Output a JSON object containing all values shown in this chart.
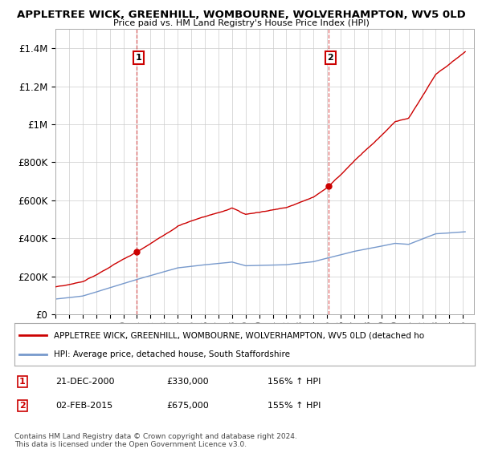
{
  "title": "APPLETREE WICK, GREENHILL, WOMBOURNE, WOLVERHAMPTON, WV5 0LD",
  "subtitle": "Price paid vs. HM Land Registry's House Price Index (HPI)",
  "background_color": "#ffffff",
  "plot_bg_color": "#ffffff",
  "grid_color": "#cccccc",
  "red_line_color": "#cc0000",
  "blue_line_color": "#7799cc",
  "dashed_line_color": "#cc0000",
  "ylim": [
    0,
    1500000
  ],
  "yticks": [
    0,
    200000,
    400000,
    600000,
    800000,
    1000000,
    1200000,
    1400000
  ],
  "ytick_labels": [
    "£0",
    "£200K",
    "£400K",
    "£600K",
    "£800K",
    "£1M",
    "£1.2M",
    "£1.4M"
  ],
  "xlim_start": 1995.0,
  "xlim_end": 2025.8,
  "transaction1": {
    "date_x": 2000.97,
    "price": 330000,
    "label": "1"
  },
  "transaction2": {
    "date_x": 2015.09,
    "price": 675000,
    "label": "2"
  },
  "annotation1": {
    "date": "21-DEC-2000",
    "price": "£330,000",
    "pct": "156% ↑ HPI"
  },
  "annotation2": {
    "date": "02-FEB-2015",
    "price": "£675,000",
    "pct": "155% ↑ HPI"
  },
  "legend_line1": "APPLETREE WICK, GREENHILL, WOMBOURNE, WOLVERHAMPTON, WV5 0LD (detached ho",
  "legend_line2": "HPI: Average price, detached house, South Staffordshire",
  "footer": "Contains HM Land Registry data © Crown copyright and database right 2024.\nThis data is licensed under the Open Government Licence v3.0."
}
